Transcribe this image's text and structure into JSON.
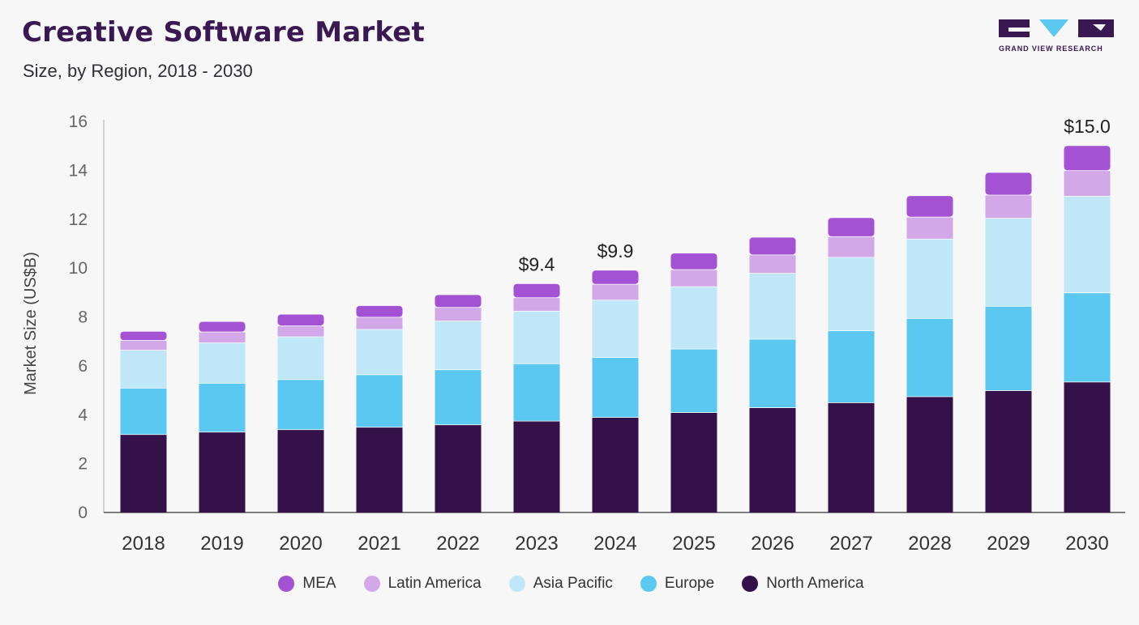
{
  "header": {
    "title": "Creative Software Market",
    "subtitle": "Size, by Region, 2018 - 2030"
  },
  "brand": {
    "name": "GRAND VIEW RESEARCH",
    "color": "#3a1851",
    "accent": "#5bc8f1"
  },
  "chart_data": {
    "type": "bar",
    "stacked": true,
    "title": "Creative Software Market",
    "subtitle": "Size, by Region, 2018 - 2030",
    "xlabel": "",
    "ylabel": "Market Size (US$B)",
    "ylim": [
      0,
      16
    ],
    "yticks": [
      0,
      2,
      4,
      6,
      8,
      10,
      12,
      14,
      16
    ],
    "grid": false,
    "legend_position": "bottom",
    "categories": [
      "2018",
      "2019",
      "2020",
      "2021",
      "2022",
      "2023",
      "2024",
      "2025",
      "2026",
      "2027",
      "2028",
      "2029",
      "2030"
    ],
    "series": [
      {
        "name": "North America",
        "color": "#35114a",
        "values": [
          3.2,
          3.3,
          3.4,
          3.5,
          3.6,
          3.75,
          3.9,
          4.1,
          4.3,
          4.5,
          4.75,
          5.0,
          5.35
        ]
      },
      {
        "name": "Europe",
        "color": "#5bc8f1",
        "values": [
          1.9,
          2.0,
          2.05,
          2.15,
          2.25,
          2.35,
          2.45,
          2.6,
          2.8,
          2.95,
          3.2,
          3.45,
          3.65
        ]
      },
      {
        "name": "Asia Pacific",
        "color": "#c0e7f8",
        "values": [
          1.55,
          1.65,
          1.75,
          1.85,
          2.0,
          2.15,
          2.35,
          2.55,
          2.7,
          3.0,
          3.25,
          3.6,
          3.95
        ]
      },
      {
        "name": "Latin America",
        "color": "#d3a8e8",
        "values": [
          0.4,
          0.45,
          0.45,
          0.5,
          0.55,
          0.55,
          0.65,
          0.7,
          0.75,
          0.85,
          0.9,
          0.95,
          1.05
        ]
      },
      {
        "name": "MEA",
        "color": "#a452d4",
        "values": [
          0.35,
          0.4,
          0.45,
          0.45,
          0.5,
          0.55,
          0.55,
          0.65,
          0.7,
          0.75,
          0.85,
          0.9,
          1.0
        ]
      }
    ],
    "data_labels": [
      {
        "category": "2023",
        "text": "$9.4"
      },
      {
        "category": "2024",
        "text": "$9.9"
      },
      {
        "category": "2030",
        "text": "$15.0"
      }
    ]
  }
}
